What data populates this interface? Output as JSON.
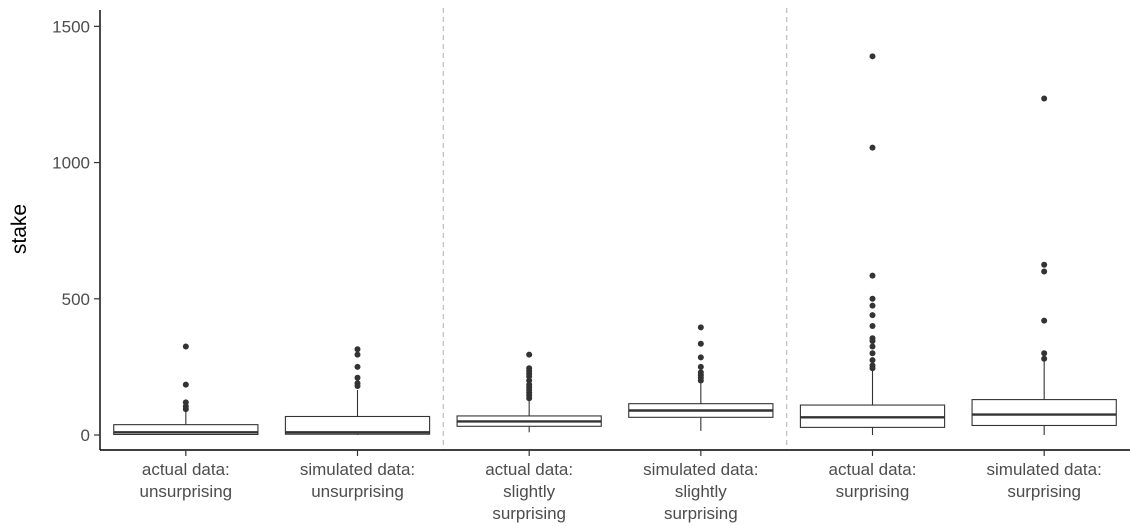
{
  "chart_data": {
    "type": "box",
    "ylabel": "stake",
    "xlabel": "",
    "ylim": [
      -55,
      1560
    ],
    "yticks": [
      0,
      500,
      1000,
      1500
    ],
    "grid": false,
    "separators_after_index": [
      1,
      3
    ],
    "categories": [
      {
        "lines": [
          "actual data:",
          "unsurprising"
        ]
      },
      {
        "lines": [
          "simulated data:",
          "unsurprising"
        ]
      },
      {
        "lines": [
          "actual data:",
          "slightly",
          "surprising"
        ]
      },
      {
        "lines": [
          "simulated data:",
          "slightly",
          "surprising"
        ]
      },
      {
        "lines": [
          "actual data:",
          "surprising"
        ]
      },
      {
        "lines": [
          "simulated data:",
          "surprising"
        ]
      }
    ],
    "boxes": [
      {
        "min": 0,
        "q1": 2,
        "median": 10,
        "q3": 38,
        "max": 85,
        "outliers": [
          95,
          105,
          120,
          185,
          325
        ]
      },
      {
        "min": 0,
        "q1": 3,
        "median": 10,
        "q3": 68,
        "max": 165,
        "outliers": [
          180,
          190,
          210,
          250,
          295,
          315
        ]
      },
      {
        "min": 10,
        "q1": 32,
        "median": 50,
        "q3": 70,
        "max": 125,
        "outliers": [
          135,
          145,
          155,
          165,
          175,
          185,
          200,
          215,
          225,
          235,
          245,
          295
        ]
      },
      {
        "min": 15,
        "q1": 65,
        "median": 90,
        "q3": 115,
        "max": 190,
        "outliers": [
          200,
          210,
          220,
          230,
          250,
          285,
          335,
          395
        ]
      },
      {
        "min": 0,
        "q1": 28,
        "median": 65,
        "q3": 110,
        "max": 235,
        "outliers": [
          245,
          255,
          275,
          300,
          325,
          345,
          355,
          400,
          440,
          475,
          500,
          585,
          1055,
          1390
        ]
      },
      {
        "min": 0,
        "q1": 35,
        "median": 75,
        "q3": 130,
        "max": 270,
        "outliers": [
          280,
          300,
          420,
          600,
          625,
          1235
        ]
      }
    ]
  }
}
